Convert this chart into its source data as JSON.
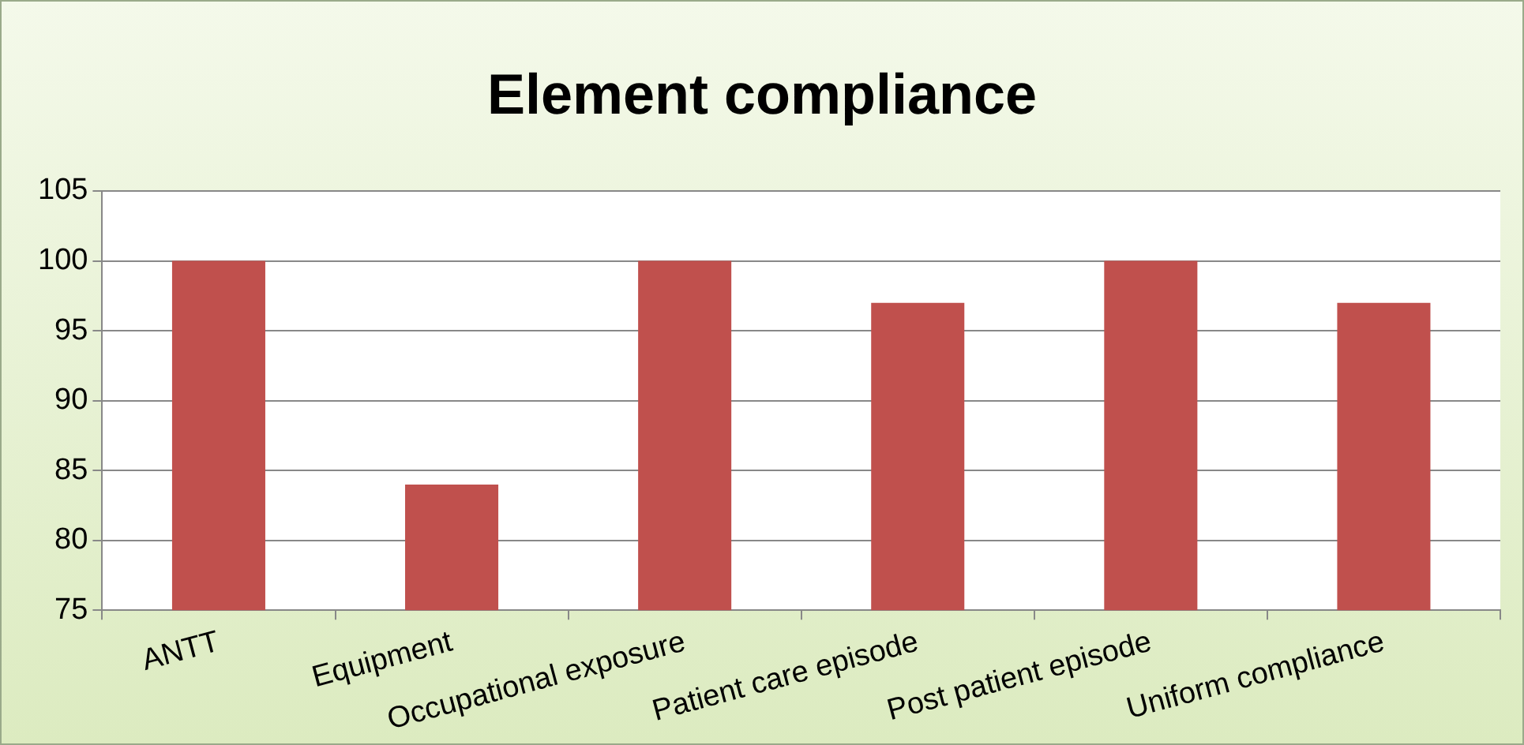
{
  "chart_data": {
    "type": "bar",
    "title": "Element compliance",
    "categories": [
      "ANTT",
      "Equipment",
      "Occupational exposure",
      "Patient care episode",
      "Post patient episode",
      "Uniform compliance"
    ],
    "values": [
      100,
      84,
      100,
      97,
      100,
      97
    ],
    "color": "#c0504d",
    "ylim": [
      75,
      105
    ],
    "yticks": [
      75,
      80,
      85,
      90,
      95,
      100,
      105
    ],
    "grid": "y",
    "legend": false
  }
}
